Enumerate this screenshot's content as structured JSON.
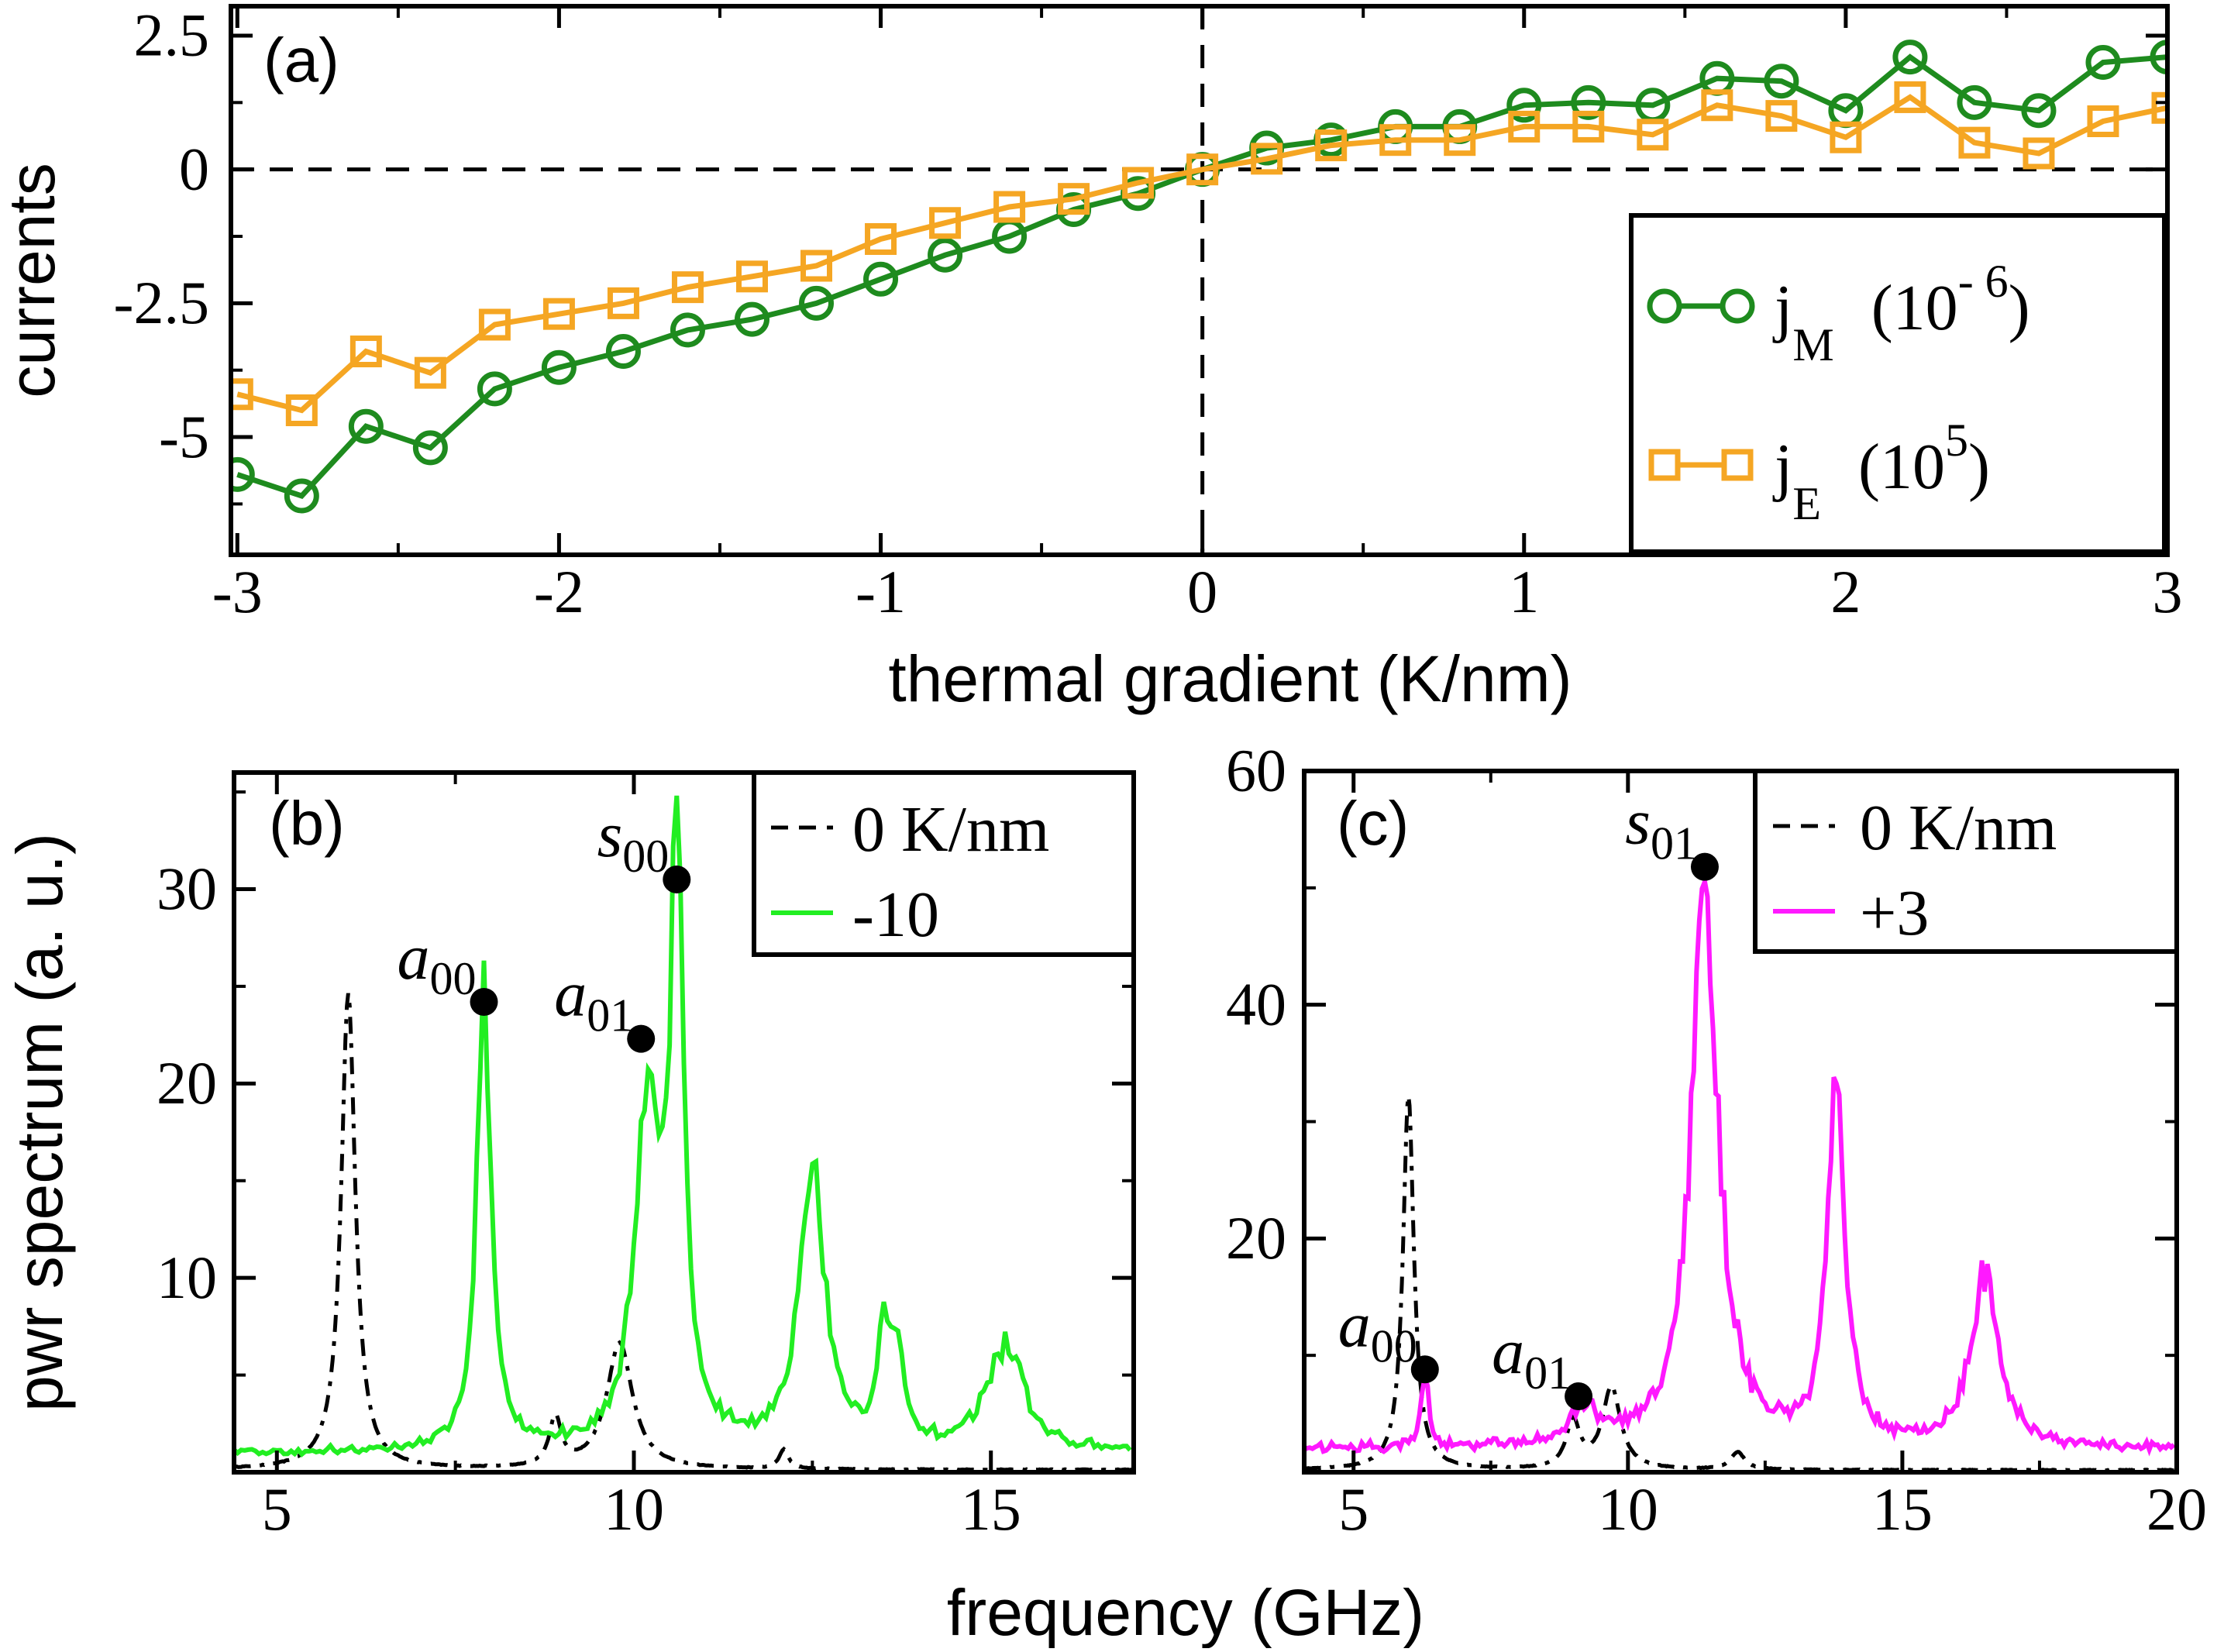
{
  "figure_xlabel": "frequency (GHz)",
  "chart_data": [
    {
      "type": "line",
      "panel_label": "(a)",
      "xlabel": "thermal gradient (K/nm)",
      "ylabel": "currents",
      "xlim": [
        -3.02,
        3.0
      ],
      "ylim": [
        -7.2,
        3.05
      ],
      "xticks": [
        -3,
        -2,
        -1,
        0,
        1,
        2,
        3
      ],
      "xtick_labels": [
        "-3",
        "-2",
        "-1",
        "0",
        "1",
        "2",
        "3"
      ],
      "yticks": [
        -5,
        -2.5,
        0,
        2.5
      ],
      "ytick_labels": [
        "-5",
        "-2.5",
        "0",
        "2.5"
      ],
      "reference_lines": {
        "x": 0,
        "y": 0
      },
      "legend_position": "bottom-right",
      "x": [
        -3.0,
        -2.8,
        -2.6,
        -2.4,
        -2.2,
        -2.0,
        -1.8,
        -1.6,
        -1.4,
        -1.2,
        -1.0,
        -0.8,
        -0.6,
        -0.4,
        -0.2,
        0.0,
        0.2,
        0.4,
        0.6,
        0.8,
        1.0,
        1.2,
        1.4,
        1.6,
        1.8,
        2.0,
        2.2,
        2.4,
        2.6,
        2.8,
        3.0
      ],
      "series": [
        {
          "name": "j_M (10^-6)",
          "legend_main": "j",
          "legend_sub": "M",
          "legend_scale": "(10",
          "legend_exp": "- 6",
          "legend_close": ")",
          "marker": "circle",
          "color": "#1e8b1e",
          "values": [
            -5.7,
            -6.1,
            -4.8,
            -5.2,
            -4.1,
            -3.7,
            -3.4,
            -3.0,
            -2.8,
            -2.5,
            -2.05,
            -1.6,
            -1.25,
            -0.75,
            -0.45,
            0.0,
            0.4,
            0.55,
            0.8,
            0.8,
            1.2,
            1.25,
            1.2,
            1.7,
            1.65,
            1.1,
            2.1,
            1.25,
            1.1,
            2.0,
            2.1
          ]
        },
        {
          "name": "j_E (10^5)",
          "legend_main": "j",
          "legend_sub": "E",
          "legend_scale": "(10",
          "legend_exp": "5",
          "legend_close": ")",
          "marker": "square",
          "color": "#f5a623",
          "values": [
            -4.2,
            -4.5,
            -3.4,
            -3.8,
            -2.9,
            -2.7,
            -2.5,
            -2.2,
            -2.0,
            -1.8,
            -1.3,
            -1.0,
            -0.7,
            -0.55,
            -0.25,
            0.0,
            0.2,
            0.45,
            0.55,
            0.55,
            0.8,
            0.8,
            0.65,
            1.2,
            1.0,
            0.6,
            1.35,
            0.5,
            0.3,
            0.9,
            1.15
          ]
        }
      ]
    },
    {
      "type": "line",
      "panel_label": "(b)",
      "xlabel": "",
      "ylabel": "pwr spectrum (a. u.)",
      "xlim": [
        4.4,
        17.0
      ],
      "ylim": [
        0,
        36
      ],
      "xticks": [
        5,
        10,
        15
      ],
      "xtick_labels": [
        "5",
        "10",
        "15"
      ],
      "yticks": [
        10,
        20,
        30
      ],
      "ytick_labels": [
        "10",
        "20",
        "30"
      ],
      "legend_position": "top-right",
      "legend_entries": [
        "0 K/nm",
        "-10"
      ],
      "baseline": {
        "name": "0 K/nm",
        "style": "dashed",
        "color": "#000000",
        "peaks": [
          [
            6.0,
            24.5,
            0.12
          ],
          [
            8.9,
            2.5,
            0.1
          ],
          [
            9.8,
            6.5,
            0.22
          ],
          [
            12.1,
            1.0,
            0.08
          ]
        ],
        "background": 0.2
      },
      "series": [
        {
          "name": "-10",
          "color": "#22ee22",
          "peaks": [
            [
              7.9,
              23.2,
              0.12
            ],
            [
              10.2,
              18.5,
              0.2
            ],
            [
              10.6,
              28.5,
              0.12
            ],
            [
              12.5,
              14.0,
              0.22
            ],
            [
              13.5,
              6.0,
              0.1
            ],
            [
              13.7,
              4.0,
              0.1
            ],
            [
              15.2,
              5.5,
              0.3
            ]
          ],
          "background": 1.0
        }
      ],
      "markers": [
        {
          "label": "a",
          "sub": "00",
          "x": 7.9,
          "y": 24.2
        },
        {
          "label": "a",
          "sub": "01",
          "x": 10.1,
          "y": 22.3
        },
        {
          "label": "s",
          "sub": "00",
          "x": 10.6,
          "y": 30.5
        }
      ]
    },
    {
      "type": "line",
      "panel_label": "(c)",
      "xlabel": "",
      "ylabel": "",
      "xlim": [
        4.1,
        20.0
      ],
      "ylim": [
        0,
        60
      ],
      "xticks": [
        5,
        10,
        15,
        20
      ],
      "xtick_labels": [
        "5",
        "10",
        "15",
        "20"
      ],
      "yticks": [
        20,
        40,
        60
      ],
      "ytick_labels": [
        "20",
        "40",
        "60"
      ],
      "legend_position": "top-right",
      "legend_entries": [
        "0 K/nm",
        "+3"
      ],
      "baseline": {
        "name": "0 K/nm",
        "style": "dashed",
        "color": "#000000",
        "peaks": [
          [
            6.0,
            32.0,
            0.12
          ],
          [
            9.0,
            4.0,
            0.15
          ],
          [
            9.7,
            7.0,
            0.2
          ],
          [
            12.0,
            1.5,
            0.15
          ]
        ],
        "background": 0.3
      },
      "series": [
        {
          "name": "+3",
          "color": "#ff19ff",
          "peaks": [
            [
              6.3,
              6.5,
              0.08
            ],
            [
              9.2,
              3.0,
              0.3
            ],
            [
              11.4,
              47.0,
              0.3
            ],
            [
              13.8,
              33.0,
              0.18
            ],
            [
              16.5,
              14.5,
              0.3
            ]
          ],
          "background": 2.0
        }
      ],
      "markers": [
        {
          "label": "a",
          "sub": "00",
          "x": 6.3,
          "y": 8.8
        },
        {
          "label": "a",
          "sub": "01",
          "x": 9.1,
          "y": 6.5
        },
        {
          "label": "s",
          "sub": "01",
          "x": 11.4,
          "y": 51.8
        }
      ]
    }
  ]
}
